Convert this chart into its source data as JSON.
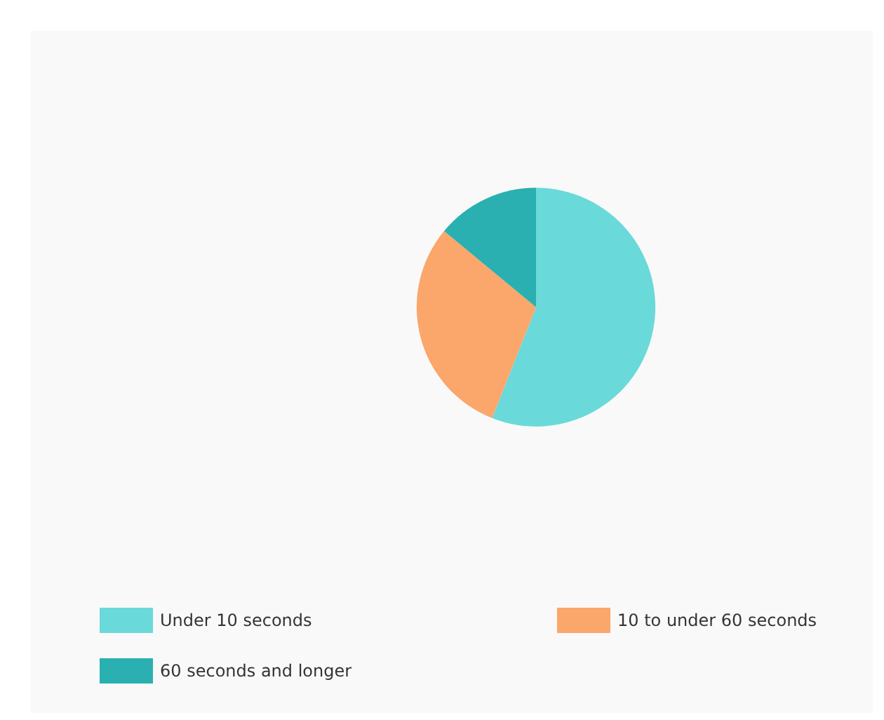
{
  "chart_data": {
    "type": "pie",
    "categories": [
      "Under 10 seconds",
      "10 to under 60 seconds",
      "60 seconds and longer"
    ],
    "values": [
      56,
      30,
      14
    ],
    "colors": [
      "#6ad9d9",
      "#fba66a",
      "#2ab0b0"
    ],
    "legend": "bottom"
  }
}
